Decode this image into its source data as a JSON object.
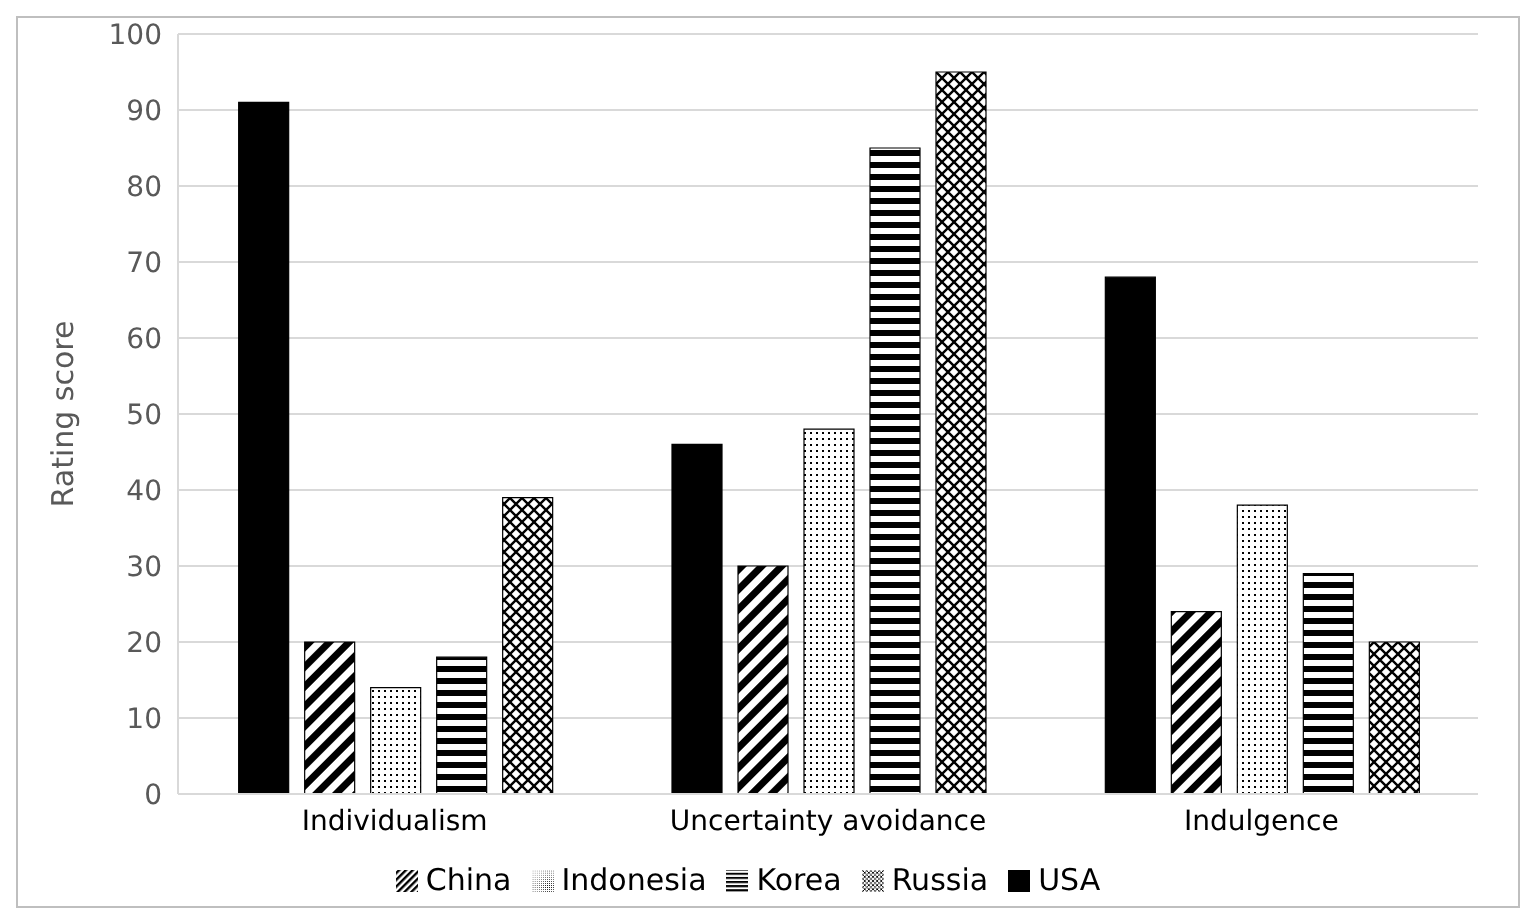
{
  "chart_data": {
    "type": "bar",
    "ylabel": "Rating score",
    "categories": [
      "Individualism",
      "Uncertainty avoidance",
      "Indulgence"
    ],
    "series": [
      {
        "name": "USA",
        "color": "#000000",
        "values": [
          91,
          46,
          68
        ]
      },
      {
        "name": "China",
        "color": "#000000",
        "values": [
          20,
          30,
          24
        ]
      },
      {
        "name": "Indonesia",
        "color": "#000000",
        "values": [
          14,
          48,
          38
        ]
      },
      {
        "name": "Korea",
        "color": "#000000",
        "values": [
          18,
          85,
          29
        ]
      },
      {
        "name": "Russia",
        "color": "#000000",
        "values": [
          39,
          95,
          20
        ]
      }
    ],
    "ylim": [
      0,
      100
    ],
    "yticks": [
      0,
      10,
      20,
      30,
      40,
      50,
      60,
      70,
      80,
      90,
      100
    ],
    "grid": "y",
    "legend": "bottom"
  }
}
